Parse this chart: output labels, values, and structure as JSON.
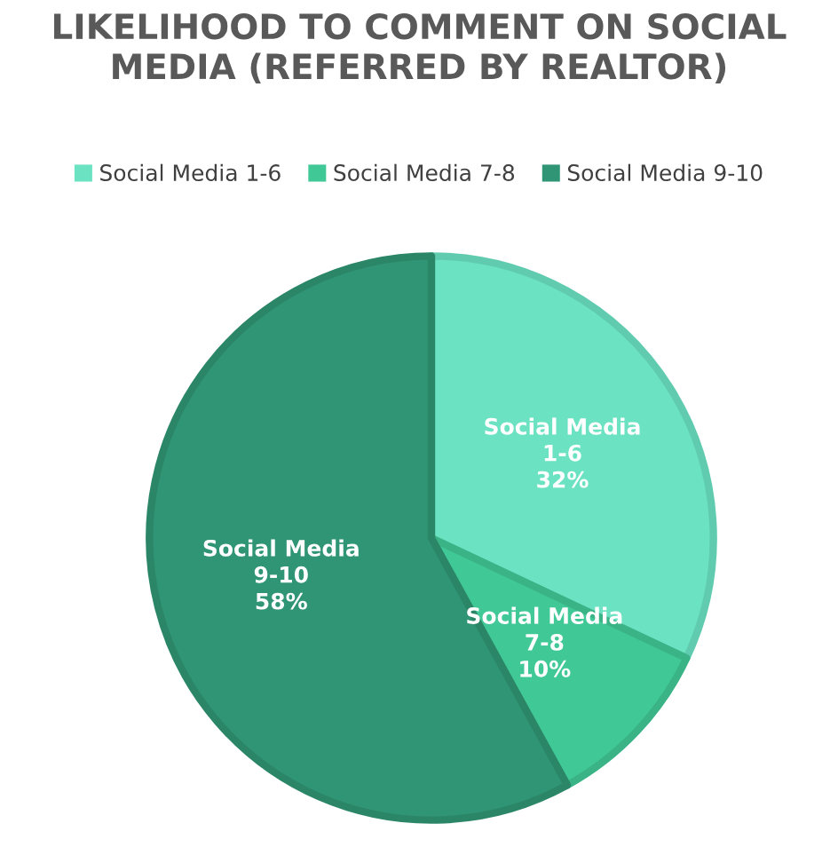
{
  "chart_data": {
    "type": "pie",
    "title": "LIKELIHOOD TO COMMENT ON SOCIAL MEDIA (REFERRED BY REALTOR)",
    "categories": [
      "Social Media 1-6",
      "Social Media 7-8",
      "Social Media 9-10"
    ],
    "values": [
      32,
      10,
      58
    ],
    "colors": [
      "#6be2c2",
      "#40c896",
      "#309574"
    ],
    "value_labels": [
      "Social Media\n1-6\n32%",
      "Social Media\n7-8\n10%",
      "Social Media\n9-10\n58%"
    ],
    "legend": "top"
  }
}
